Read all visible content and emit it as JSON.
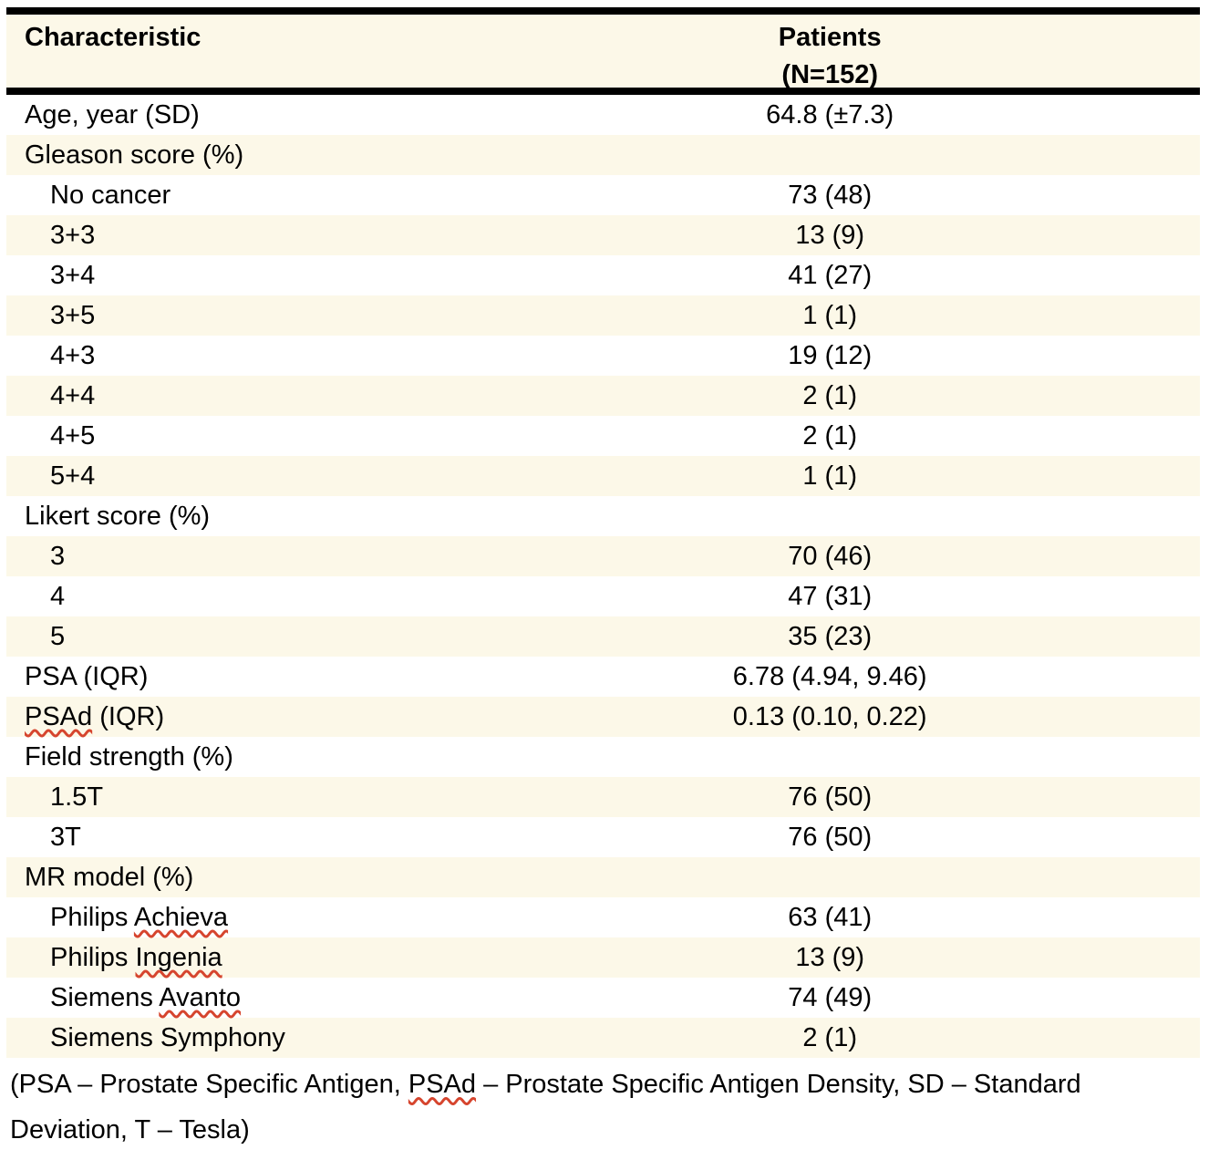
{
  "colors": {
    "row_shade": "#fcf8e8",
    "rule_black": "#000000",
    "spellcheck_red": "#d6452e",
    "page_background": "#ffffff",
    "text": "#000000"
  },
  "table": {
    "header": {
      "characteristic": "Characteristic",
      "patients_line1": "Patients",
      "patients_line2": "(N=152)"
    },
    "rows": [
      {
        "label": "Age, year (SD)",
        "value": "64.8 (±7.3)",
        "indent": false
      },
      {
        "label": "Gleason score (%)",
        "value": "",
        "indent": false
      },
      {
        "label": "No cancer",
        "value": "73 (48)",
        "indent": true
      },
      {
        "label": "3+3",
        "value": "13 (9)",
        "indent": true
      },
      {
        "label": "3+4",
        "value": "41 (27)",
        "indent": true
      },
      {
        "label": "3+5",
        "value": "1 (1)",
        "indent": true
      },
      {
        "label": "4+3",
        "value": "19 (12)",
        "indent": true
      },
      {
        "label": "4+4",
        "value": "2 (1)",
        "indent": true
      },
      {
        "label": "4+5",
        "value": "2 (1)",
        "indent": true
      },
      {
        "label": "5+4",
        "value": "1 (1)",
        "indent": true
      },
      {
        "label": "Likert score (%)",
        "value": "",
        "indent": false
      },
      {
        "label": "3",
        "value": "70 (46)",
        "indent": true
      },
      {
        "label": "4",
        "value": "47 (31)",
        "indent": true
      },
      {
        "label": "5",
        "value": "35 (23)",
        "indent": true
      },
      {
        "label": "PSA (IQR)",
        "value": "6.78 (4.94, 9.46)",
        "indent": false
      },
      {
        "label": "PSAd (IQR)",
        "value": "0.13 (0.10, 0.22)",
        "indent": false,
        "misspelled": "PSAd"
      },
      {
        "label": "Field strength (%)",
        "value": "",
        "indent": false
      },
      {
        "label": "1.5T",
        "value": "76 (50)",
        "indent": true
      },
      {
        "label": "3T",
        "value": "76 (50)",
        "indent": true
      },
      {
        "label": "MR model (%)",
        "value": "",
        "indent": false
      },
      {
        "label": "Philips Achieva",
        "value": "63 (41)",
        "indent": true,
        "misspelled": "Achieva"
      },
      {
        "label": "Philips Ingenia",
        "value": "13 (9)",
        "indent": true,
        "misspelled": "Ingenia"
      },
      {
        "label": "Siemens Avanto",
        "value": "74 (49)",
        "indent": true,
        "misspelled": "Avanto"
      },
      {
        "label": "Siemens Symphony",
        "value": "2 (1)",
        "indent": true
      }
    ]
  },
  "footnote": {
    "lines": [
      [
        {
          "text": "(PSA – Prostate Specific Antigen, "
        },
        {
          "text": "PSAd",
          "squiggle": true
        },
        {
          "text": " – Prostate Specific Antigen Density, SD – Standard"
        }
      ],
      [
        {
          "text": "Deviation, T – Tesla)"
        }
      ]
    ]
  }
}
